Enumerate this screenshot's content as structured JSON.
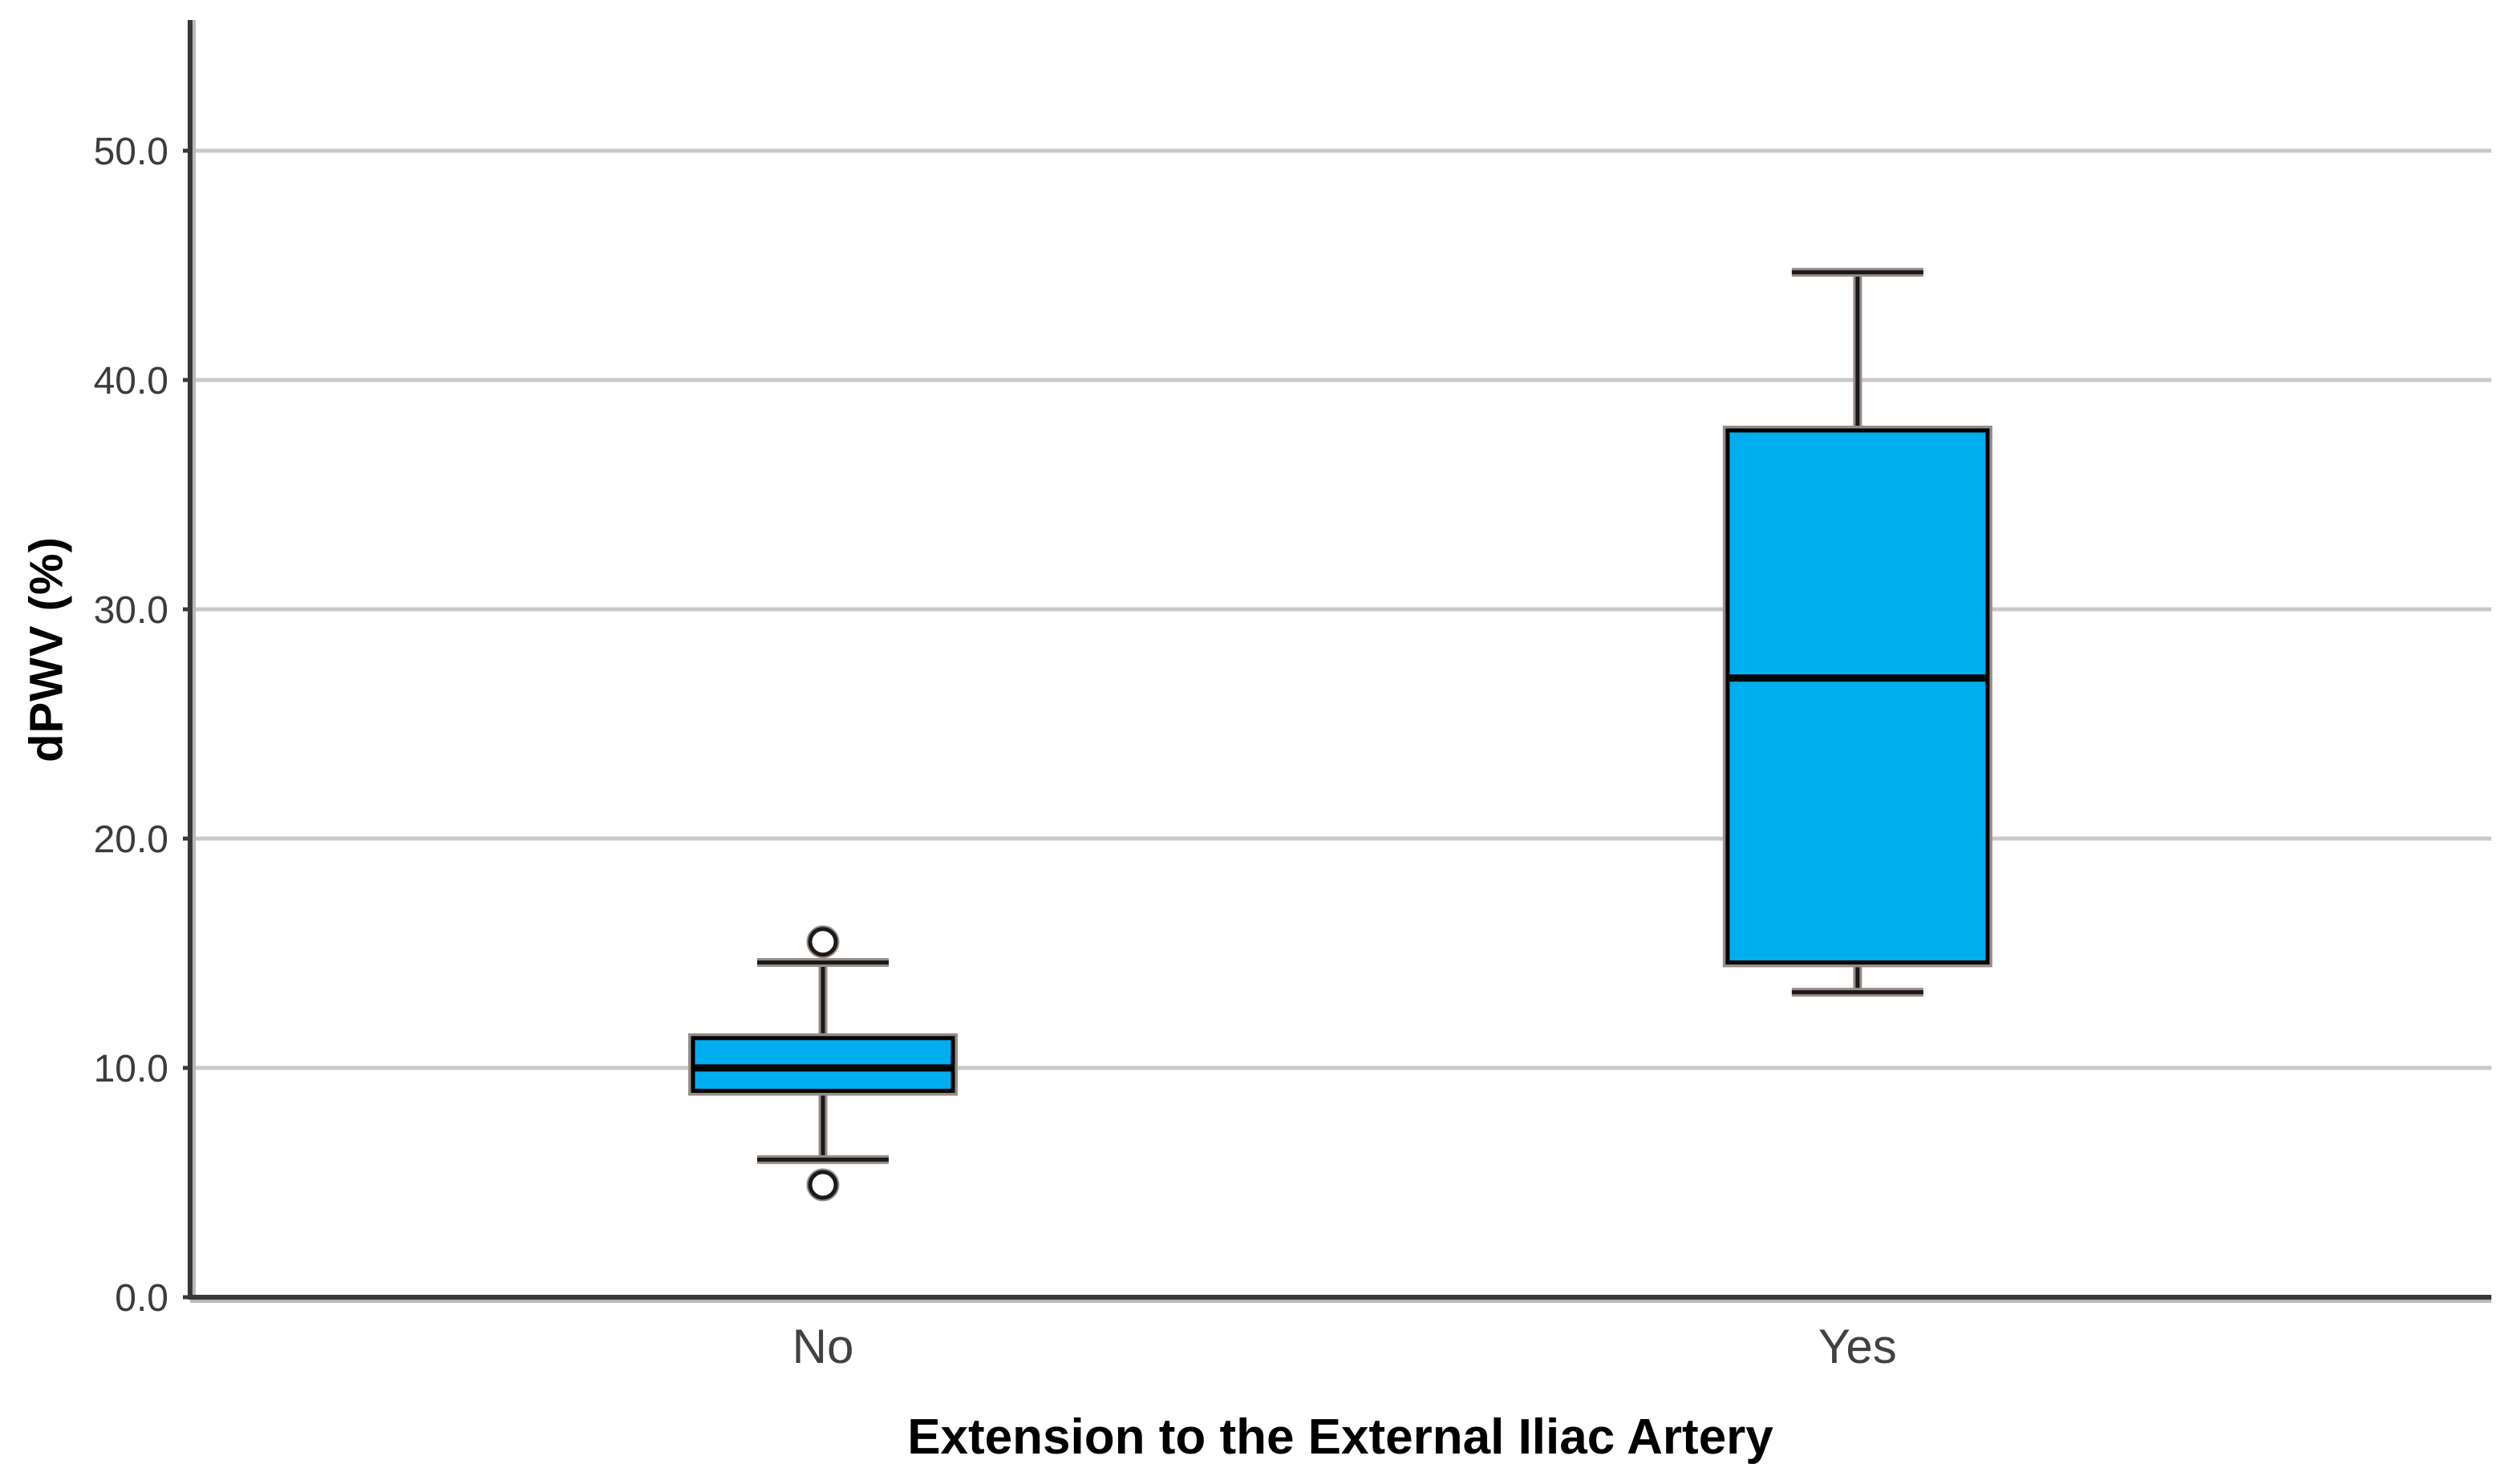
{
  "figure": {
    "background": "#ffffff"
  },
  "chart_data": {
    "type": "box",
    "title": "",
    "xlabel": "Extension to the External Iliac Artery",
    "ylabel": "dPWV (%)",
    "categories": [
      "No",
      "Yes"
    ],
    "y_ticks": {
      "values": [
        0,
        10,
        20,
        30,
        40,
        50
      ],
      "labels": [
        "0.0",
        "10.0",
        "20.0",
        "30.0",
        "40.0",
        "50.0"
      ]
    },
    "ylim": [
      0,
      55.7
    ],
    "grid": "horizontal",
    "legend": "none",
    "boxes": [
      {
        "category": "No",
        "whisker_low": 6.0,
        "q1": 9.0,
        "median": 10.0,
        "q3": 11.3,
        "whisker_high": 14.6,
        "outliers": [
          15.5,
          4.9
        ]
      },
      {
        "category": "Yes",
        "whisker_low": 13.3,
        "q1": 14.6,
        "median": 27.0,
        "q3": 37.8,
        "whisker_high": 44.7,
        "outliers": []
      }
    ],
    "colors": {
      "box_fill": "#00AEEF",
      "box_border": "#000000",
      "median": "#050505",
      "whisker": "#1a1a1a",
      "outlier_stroke": "#1a1a1a",
      "gridline": "#c9c9c9",
      "axis_line": "#383838",
      "axis_shadow": "#b8b8b8",
      "stroke_halo": "#978d86",
      "tick_label": "#3c3c3c",
      "category_label": "#414141",
      "title": "#000000"
    }
  }
}
